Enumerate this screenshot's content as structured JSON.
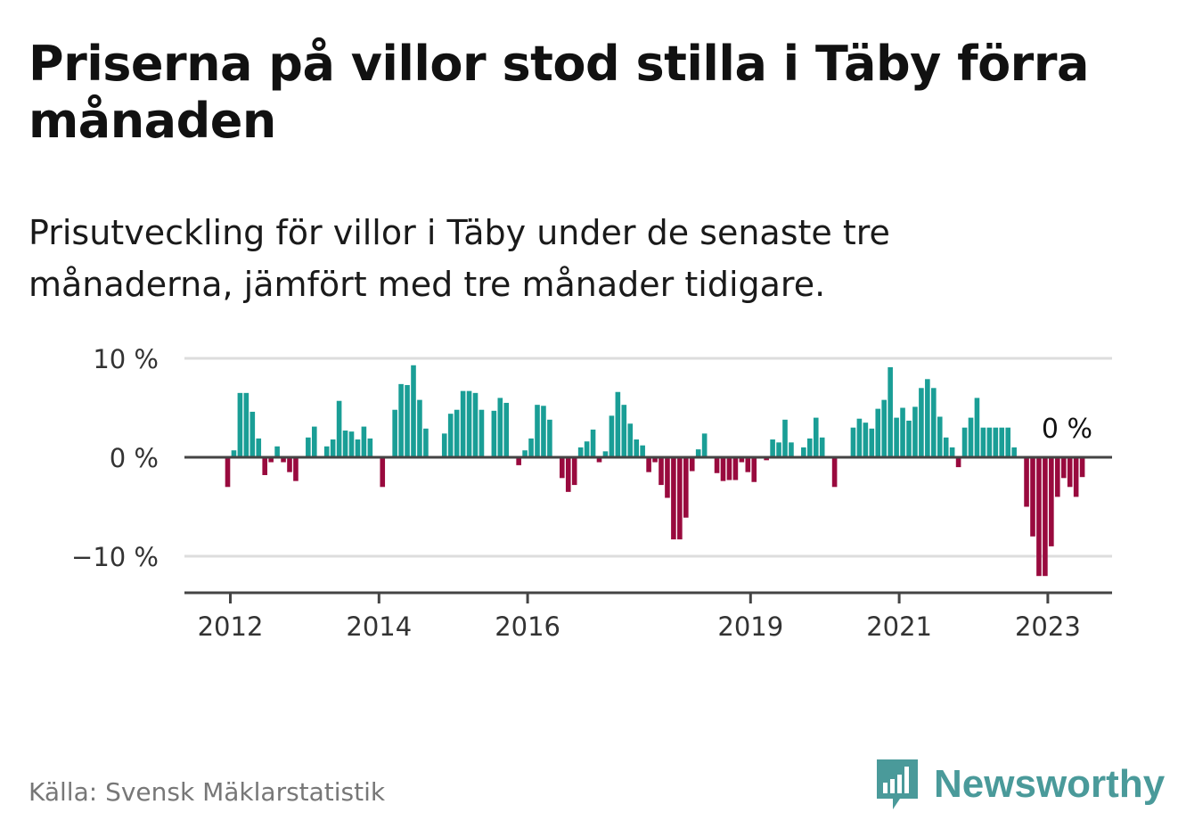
{
  "title": "Priserna på villor stod stilla i Täby förra månaden",
  "subtitle": "Prisutveckling för villor i Täby under de senaste tre månaderna, jämfört med tre månader tidigare.",
  "source": "Källa: Svensk Mäklarstatistik",
  "brand": "Newsworthy",
  "colors": {
    "positive": "#1a9e96",
    "negative": "#990a3e",
    "grid": "#dddddd",
    "axis": "#444444",
    "brand": "#4a9a9a"
  },
  "chart_data": {
    "type": "bar",
    "unit": "%",
    "ylim": [
      -13.5,
      10
    ],
    "y_ticks": [
      10,
      0,
      -10
    ],
    "y_tick_labels": [
      "10 %",
      "0 %",
      "−10 %"
    ],
    "x_ticks": [
      {
        "label": "2012",
        "index": 0
      },
      {
        "label": "2014",
        "index": 24
      },
      {
        "label": "2016",
        "index": 48
      },
      {
        "label": "2019",
        "index": 84
      },
      {
        "label": "2021",
        "index": 108
      },
      {
        "label": "2023",
        "index": 132
      }
    ],
    "last_value_label": "0 %",
    "start": "2012-01",
    "values": [
      -3,
      0.7,
      6.5,
      6.5,
      4.6,
      1.9,
      -1.8,
      -0.5,
      1.1,
      -0.5,
      -1.5,
      -2.4,
      0,
      2,
      3.1,
      0,
      1.1,
      1.8,
      5.7,
      2.7,
      2.6,
      1.8,
      3.1,
      1.9,
      0,
      -3,
      0,
      4.8,
      7.4,
      7.3,
      9.3,
      5.8,
      2.9,
      0,
      0,
      2.4,
      4.4,
      4.8,
      6.7,
      6.7,
      6.5,
      4.8,
      0,
      4.7,
      6,
      5.5,
      0,
      -0.8,
      0.7,
      1.9,
      5.3,
      5.2,
      3.8,
      0,
      -2.1,
      -3.5,
      -2.8,
      1,
      1.6,
      2.8,
      -0.5,
      0.6,
      4.2,
      6.6,
      5.3,
      3.4,
      1.8,
      1.2,
      -1.5,
      -0.5,
      -2.8,
      -4.1,
      -8.3,
      -8.3,
      -6.1,
      -1.4,
      0.8,
      2.4,
      0,
      -1.6,
      -2.4,
      -2.3,
      -2.3,
      -0.5,
      -1.5,
      -2.5,
      0,
      -0.3,
      1.8,
      1.5,
      3.8,
      1.5,
      0,
      1,
      1.9,
      4,
      2,
      0,
      -3,
      0,
      0,
      3,
      3.9,
      3.5,
      2.9,
      4.9,
      5.8,
      9.1,
      4,
      5,
      3.7,
      5.1,
      7,
      7.9,
      7,
      4.1,
      2,
      1,
      -1,
      3,
      4,
      6,
      3,
      3,
      3,
      3,
      3,
      1,
      0,
      -5,
      -8,
      -12,
      -12,
      -9,
      -4,
      -2.1,
      -3,
      -4,
      -2,
      0
    ]
  }
}
